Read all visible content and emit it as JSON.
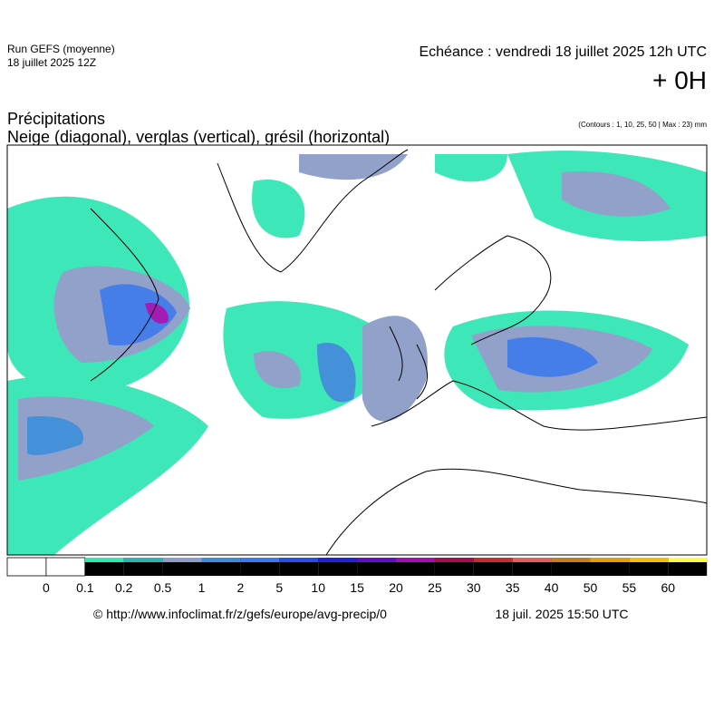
{
  "header": {
    "run": "Run GEFS (moyenne)",
    "run_date": "18 juillet 2025 12Z",
    "echeance": "Echéance : vendredi 18 juillet 2025 12h UTC",
    "offset": "+ 0H"
  },
  "title": {
    "line1": "Précipitations",
    "line2": "Neige (diagonal), verglas (vertical), grésil (horizontal)",
    "contours": "(Contours : 1, 10, 25, 50 | Max : 23) mm"
  },
  "legend": {
    "labels": [
      0,
      0.1,
      0.2,
      0.5,
      1,
      2,
      5,
      10,
      15,
      20,
      25,
      30,
      35,
      40,
      50,
      55,
      60
    ],
    "colors": [
      "#ffffff",
      "#ffffff",
      "#33e6b4",
      "#2fb3b0",
      "#8c9cc8",
      "#3c8cd8",
      "#3c78e8",
      "#2850e0",
      "#2222d0",
      "#6010c0",
      "#a010b0",
      "#a01050",
      "#c03030",
      "#e06060",
      "#c08020",
      "#e0a000",
      "#f0c000",
      "#ffff40"
    ]
  },
  "footer": {
    "url": "© http://www.infoclimat.fr/z/gefs/europe/avg-precip/0",
    "timestamp": "18 juil. 2025 15:50 UTC"
  }
}
